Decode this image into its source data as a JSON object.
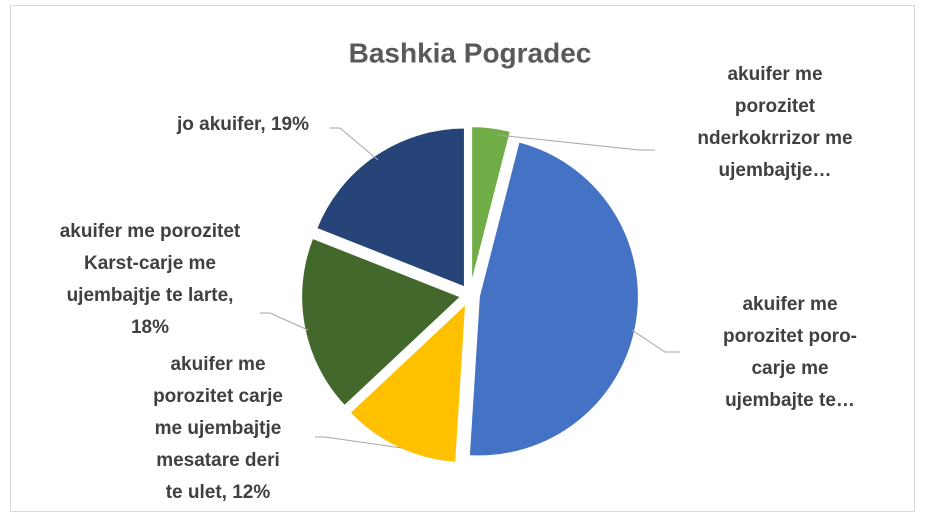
{
  "chart_data": {
    "type": "pie",
    "title": "Bashkia Pogradec",
    "values": [
      4,
      47,
      12,
      18,
      19
    ],
    "colors": [
      "#70ad47",
      "#4472c4",
      "#ffc000",
      "#43682b",
      "#264478"
    ],
    "value_labels": [
      [
        "akuifer me",
        "porozitet",
        "nderkokrrizor me",
        "ujembajtje…"
      ],
      [
        "akuifer me",
        "porozitet poro-",
        "carje me",
        "ujembajte te…"
      ],
      [
        "akuifer me",
        "porozitet carje",
        "me ujembajtje",
        "mesatare deri",
        "te ulet, 12%"
      ],
      [
        "akuifer me porozitet",
        "Karst-carje me",
        "ujembajtje te larte,",
        "18%"
      ],
      [
        "jo akuifer, 19%"
      ]
    ]
  }
}
